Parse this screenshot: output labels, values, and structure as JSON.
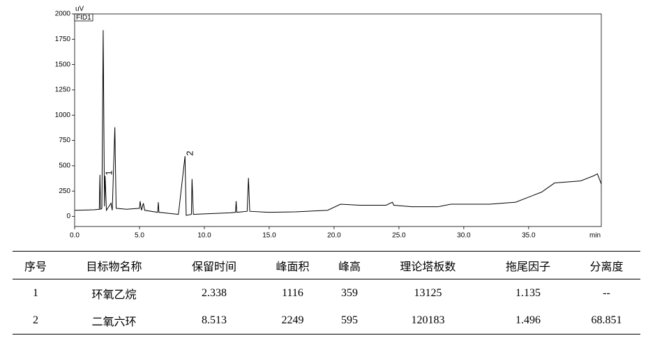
{
  "chart_data": {
    "type": "line",
    "y_label": "uV",
    "x_label": "min",
    "annotations": [
      "FID1",
      "1",
      "2"
    ],
    "color": "#000000",
    "xlim": [
      0,
      40.6
    ],
    "ylim": [
      -100,
      2000
    ],
    "xticks": [
      {
        "value": 0,
        "label": "0.0"
      },
      {
        "value": 5,
        "label": "5.0"
      },
      {
        "value": 10,
        "label": "10.0"
      },
      {
        "value": 15,
        "label": "15.0"
      },
      {
        "value": 20,
        "label": "20.0"
      },
      {
        "value": 25,
        "label": "25.0"
      },
      {
        "value": 30,
        "label": "30.0"
      },
      {
        "value": 35,
        "label": "35.0"
      }
    ],
    "yticks": [
      0,
      250,
      500,
      750,
      1000,
      1250,
      1500,
      1750,
      2000
    ],
    "x": [
      0,
      1.5,
      1.9,
      1.95,
      2.0,
      2.1,
      2.2,
      2.3,
      2.35,
      2.45,
      2.6,
      2.8,
      2.9,
      3.1,
      3.2,
      4,
      5.0,
      5.05,
      5.15,
      5.3,
      5.4,
      6.4,
      6.45,
      6.5,
      8,
      8.51,
      8.6,
      9.0,
      9.05,
      9.15,
      10,
      12,
      12.4,
      12.45,
      12.5,
      13.3,
      13.4,
      13.5,
      15,
      17,
      19.5,
      20.5,
      22,
      24,
      24.5,
      24.6,
      26,
      28,
      29,
      32,
      34,
      36,
      37,
      39,
      40,
      40.3,
      40.6
    ],
    "values": [
      60,
      65,
      70,
      410,
      70,
      80,
      1840,
      100,
      400,
      60,
      90,
      130,
      60,
      880,
      80,
      70,
      80,
      150,
      60,
      130,
      60,
      40,
      140,
      40,
      20,
      595,
      10,
      20,
      370,
      20,
      25,
      35,
      40,
      150,
      40,
      50,
      380,
      50,
      40,
      45,
      60,
      120,
      110,
      110,
      140,
      110,
      95,
      95,
      120,
      120,
      140,
      240,
      330,
      350,
      400,
      420,
      320
    ]
  },
  "table": {
    "header": [
      "序号",
      "目标物名称",
      "保留时间",
      "峰面积",
      "峰高",
      "理论塔板数",
      "拖尾因子",
      "分离度"
    ],
    "rows": [
      [
        "1",
        "环氧乙烷",
        "2.338",
        "1116",
        "359",
        "13125",
        "1.135",
        "--"
      ],
      [
        "2",
        "二氧六环",
        "8.513",
        "2249",
        "595",
        "120183",
        "1.496",
        "68.851"
      ]
    ]
  }
}
